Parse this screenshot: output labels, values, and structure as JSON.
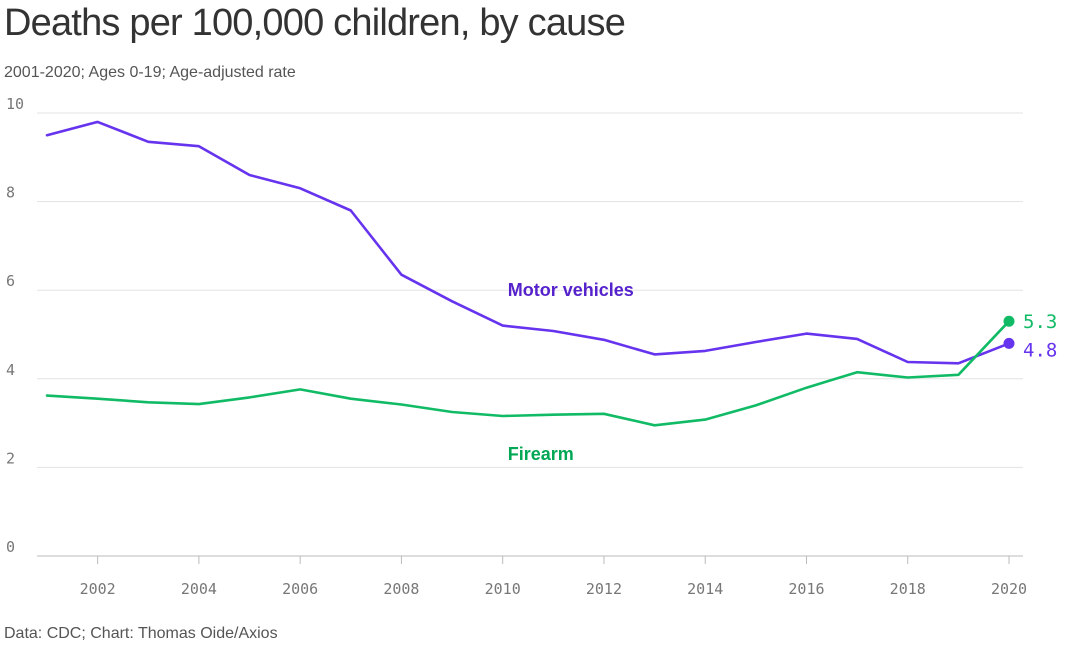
{
  "title": "Deaths per 100,000 children, by cause",
  "subtitle": "2001-2020; Ages 0-19; Age-adjusted rate",
  "footer": "Data: CDC; Chart: Thomas Oide/Axios",
  "colors": {
    "motor": "#6633ee",
    "motor_label": "#5522cc",
    "firearm": "#11bb66",
    "firearm_label": "#00a855",
    "grid": "#e3e3e3",
    "axis": "#bbbbbb"
  },
  "chart_data": {
    "type": "line",
    "title": "Deaths per 100,000 children, by cause",
    "subtitle": "2001-2020; Ages 0-19; Age-adjusted rate",
    "x": [
      2001,
      2002,
      2003,
      2004,
      2005,
      2006,
      2007,
      2008,
      2009,
      2010,
      2011,
      2012,
      2013,
      2014,
      2015,
      2016,
      2017,
      2018,
      2019,
      2020
    ],
    "xlim": [
      2001,
      2020
    ],
    "ylim": [
      0,
      10
    ],
    "x_ticks": [
      "2002",
      "2004",
      "2006",
      "2008",
      "2010",
      "2012",
      "2014",
      "2016",
      "2018",
      "2020"
    ],
    "y_ticks": [
      "0",
      "2",
      "4",
      "6",
      "8",
      "10"
    ],
    "grid": true,
    "series": [
      {
        "name": "Motor vehicles",
        "values": [
          9.5,
          9.8,
          9.35,
          9.25,
          8.6,
          8.3,
          7.8,
          6.35,
          5.75,
          5.2,
          5.08,
          4.88,
          4.55,
          4.63,
          4.83,
          5.02,
          4.9,
          4.38,
          4.35,
          4.8
        ],
        "end_label": "4.8"
      },
      {
        "name": "Firearm",
        "values": [
          3.62,
          3.55,
          3.47,
          3.43,
          3.58,
          3.76,
          3.55,
          3.42,
          3.25,
          3.16,
          3.19,
          3.21,
          2.95,
          3.08,
          3.4,
          3.8,
          4.15,
          4.03,
          4.09,
          5.3
        ],
        "end_label": "5.3"
      }
    ]
  }
}
